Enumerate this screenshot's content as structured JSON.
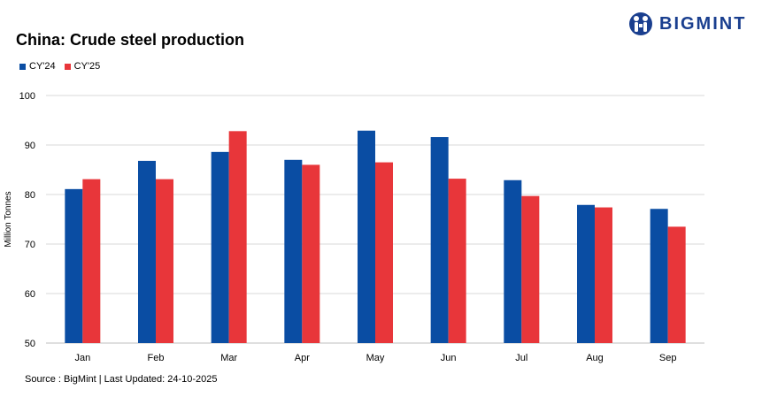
{
  "brand": {
    "name": "BIGMINT",
    "color": "#1a3f8f"
  },
  "source_note": "Source : BigMint | Last Updated: 24-10-2025",
  "colors": {
    "series1": "#0a4da3",
    "series2": "#e8363a",
    "grid": "#d9d9d9"
  },
  "chart_data": {
    "type": "bar",
    "title": "China: Crude steel production",
    "xlabel": "",
    "ylabel": "Million Tonnes",
    "ylim": [
      50,
      100
    ],
    "yticks": [
      50,
      60,
      70,
      80,
      90,
      100
    ],
    "grid": true,
    "legend_position": "top-left",
    "categories": [
      "Jan",
      "Feb",
      "Mar",
      "Apr",
      "May",
      "Jun",
      "Jul",
      "Aug",
      "Sep"
    ],
    "series": [
      {
        "name": "CY'24",
        "values": [
          81.1,
          86.8,
          88.6,
          87.0,
          92.9,
          91.6,
          82.9,
          77.9,
          77.1
        ]
      },
      {
        "name": "CY'25",
        "values": [
          83.1,
          83.1,
          92.8,
          86.0,
          86.5,
          83.2,
          79.7,
          77.4,
          73.5
        ]
      }
    ]
  }
}
